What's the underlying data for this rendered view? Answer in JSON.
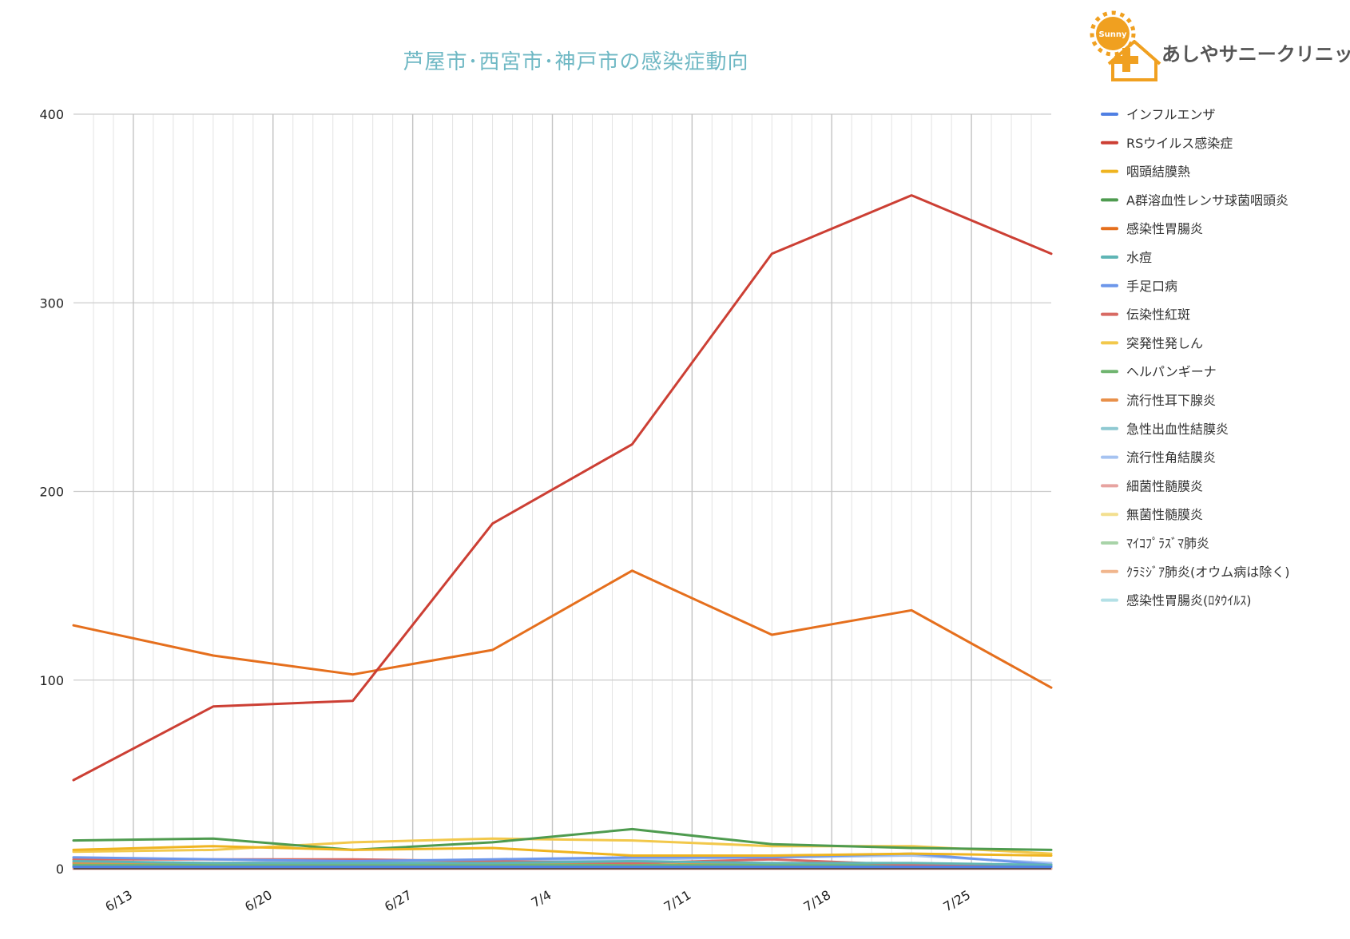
{
  "logo": {
    "name": "あしやサニークリニック",
    "badge": "Sunny"
  },
  "chart_data": {
    "type": "line",
    "title": "芦屋市･西宮市･神戸市の感染症動向",
    "xlabel": "",
    "ylabel": "",
    "ylim": [
      0,
      400
    ],
    "yticks": [
      "0",
      "100",
      "200",
      "300",
      "400"
    ],
    "xticks": [
      "6/13",
      "6/20",
      "6/27",
      "7/4",
      "7/11",
      "7/18",
      "7/25"
    ],
    "x": [
      0,
      7,
      14,
      21,
      28,
      35,
      42,
      49
    ],
    "grid": true,
    "legend_position": "right",
    "series": [
      {
        "name": "インフルエンザ",
        "color": "#4f7fe3",
        "values": [
          1,
          1,
          1,
          1,
          1,
          1,
          1,
          1
        ]
      },
      {
        "name": "RSウイルス感染症",
        "color": "#cc3f34",
        "values": [
          47,
          86,
          89,
          183,
          225,
          326,
          357,
          326
        ]
      },
      {
        "name": "咽頭結膜熱",
        "color": "#efb420",
        "values": [
          10,
          12,
          10,
          11,
          7,
          7,
          8,
          7
        ]
      },
      {
        "name": "A群溶血性レンサ球菌咽頭炎",
        "color": "#4e9b4f",
        "values": [
          15,
          16,
          10,
          14,
          21,
          13,
          11,
          10
        ]
      },
      {
        "name": "感染性胃腸炎",
        "color": "#e56f1d",
        "values": [
          129,
          113,
          103,
          116,
          158,
          124,
          137,
          96
        ]
      },
      {
        "name": "水痘",
        "color": "#5fb5b5",
        "values": [
          4,
          3,
          3,
          3,
          4,
          3,
          3,
          2
        ]
      },
      {
        "name": "手足口病",
        "color": "#6d97ea",
        "values": [
          6,
          5,
          4,
          5,
          6,
          6,
          8,
          2
        ]
      },
      {
        "name": "伝染性紅斑",
        "color": "#d86a63",
        "values": [
          5,
          5,
          5,
          4,
          3,
          5,
          2,
          2
        ]
      },
      {
        "name": "突発性発しん",
        "color": "#f2c84b",
        "values": [
          9,
          10,
          14,
          16,
          15,
          12,
          12,
          8
        ]
      },
      {
        "name": "ヘルパンギーナ",
        "color": "#70b570",
        "values": [
          2,
          2,
          2,
          2,
          2,
          2,
          2,
          2
        ]
      },
      {
        "name": "流行性耳下腺炎",
        "color": "#e8904a",
        "values": [
          3,
          3,
          3,
          3,
          2,
          3,
          2,
          2
        ]
      },
      {
        "name": "急性出血性結膜炎",
        "color": "#8fc9d2",
        "values": [
          1,
          1,
          1,
          1,
          1,
          1,
          1,
          1
        ]
      },
      {
        "name": "流行性角結膜炎",
        "color": "#a6c3f1",
        "values": [
          3,
          3,
          4,
          4,
          5,
          6,
          7,
          3
        ]
      },
      {
        "name": "細菌性髄膜炎",
        "color": "#e7a3a0",
        "values": [
          0,
          0,
          0,
          0,
          0,
          0,
          0,
          0
        ]
      },
      {
        "name": "無菌性髄膜炎",
        "color": "#f3df8f",
        "values": [
          0,
          0,
          0,
          0,
          0,
          0,
          0,
          0
        ]
      },
      {
        "name": "ﾏｲｺﾌﾟﾗｽﾞﾏ肺炎",
        "color": "#a8d3a8",
        "values": [
          1,
          1,
          1,
          1,
          1,
          1,
          1,
          1
        ]
      },
      {
        "name": "ｸﾗﾐｼﾞｱ肺炎(オウム病は除く)",
        "color": "#f1b68d",
        "values": [
          0,
          0,
          0,
          0,
          0,
          0,
          0,
          0
        ]
      },
      {
        "name": "感染性胃腸炎(ﾛﾀｳｲﾙｽ)",
        "color": "#b3e0e6",
        "values": [
          0,
          0,
          0,
          0,
          0,
          0,
          0,
          0
        ]
      }
    ]
  }
}
